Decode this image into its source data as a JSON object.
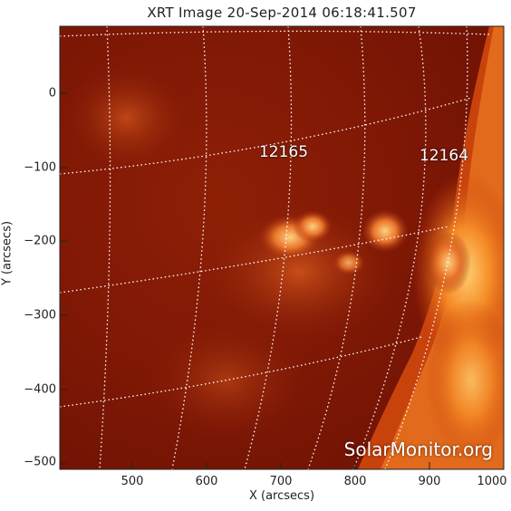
{
  "title": "XRT Image 20-Sep-2014 06:18:41.507",
  "xlabel": "X (arcsecs)",
  "ylabel": "Y (arcsecs)",
  "x_ticks": [
    "500",
    "600",
    "700",
    "800",
    "900",
    "1000"
  ],
  "y_ticks": [
    "0",
    "−100",
    "−200",
    "−300",
    "−400",
    "−500"
  ],
  "active_regions": [
    {
      "id": "12165"
    },
    {
      "id": "12164"
    }
  ],
  "watermark": "SolarMonitor.org",
  "colors": {
    "background_dark": "#7a1405",
    "background_mid": "#9b2608",
    "bright_region": "#ffb040",
    "grid": "#ffffff"
  }
}
